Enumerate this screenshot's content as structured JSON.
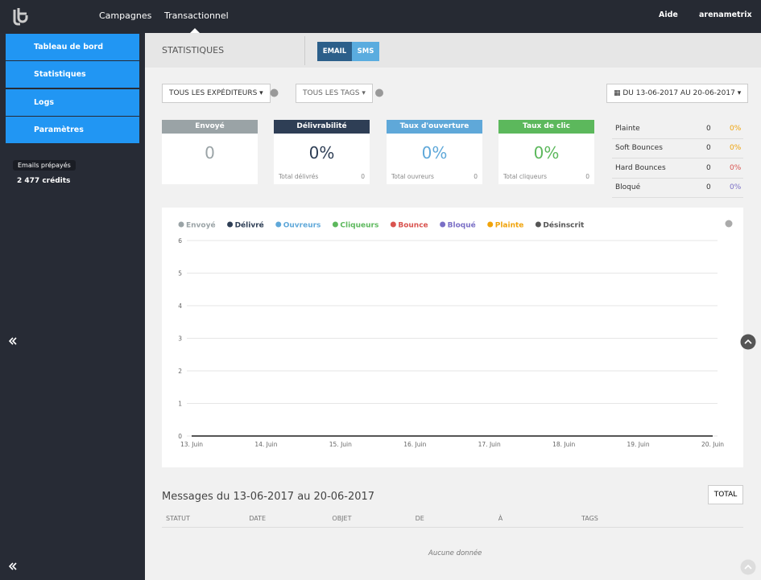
{
  "nav": {
    "items": [
      "Campagnes",
      "Transactionnel"
    ],
    "help": "Aide",
    "user": "arenametrix"
  },
  "sidebar": {
    "menu": [
      "Tableau de bord",
      "Statistiques",
      "Logs",
      "Paramètres"
    ],
    "credits_label": "Emails prépayés",
    "credits": "2 477 crédits"
  },
  "header": {
    "title": "STATISTIQUES",
    "tabs": [
      "EMAIL",
      "SMS"
    ]
  },
  "filters": {
    "senders": "TOUS LES EXPÉDITEURS",
    "tags": "TOUS LES TAGS",
    "date_range": "DU 13-06-2017 AU 20-06-2017"
  },
  "cards": [
    {
      "title": "Envoyé",
      "value": "0"
    },
    {
      "title": "Délivrabilité",
      "value": "0%",
      "footer_label": "Total délivrés",
      "footer_value": 0
    },
    {
      "title": "Taux d'ouverture",
      "value": "0%",
      "footer_label": "Total ouvreurs",
      "footer_value": 0
    },
    {
      "title": "Taux de clic",
      "value": "0%",
      "footer_label": "Total cliqueurs",
      "footer_value": 0
    }
  ],
  "side_stats": [
    {
      "label": "Plainte",
      "count": 0,
      "rate": "0%"
    },
    {
      "label": "Soft Bounces",
      "count": 0,
      "rate": "0%"
    },
    {
      "label": "Hard Bounces",
      "count": 0,
      "rate": "0%"
    },
    {
      "label": "Bloqué",
      "count": 0,
      "rate": "0%"
    }
  ],
  "chart_data": {
    "type": "line",
    "categories": [
      "13. Juin",
      "14. Juin",
      "15. Juin",
      "16. Juin",
      "17. Juin",
      "18. Juin",
      "19. Juin",
      "20. Juin"
    ],
    "series": [
      {
        "name": "Envoyé",
        "color": "#9aa3a6",
        "values": [
          0,
          0,
          0,
          0,
          0,
          0,
          0,
          0
        ]
      },
      {
        "name": "Délivré",
        "color": "#2e3e55",
        "values": [
          0,
          0,
          0,
          0,
          0,
          0,
          0,
          0
        ]
      },
      {
        "name": "Ouvreurs",
        "color": "#5fa8d9",
        "values": [
          0,
          0,
          0,
          0,
          0,
          0,
          0,
          0
        ]
      },
      {
        "name": "Cliqueurs",
        "color": "#5cb85c",
        "values": [
          0,
          0,
          0,
          0,
          0,
          0,
          0,
          0
        ]
      },
      {
        "name": "Bounce",
        "color": "#d9534f",
        "values": [
          0,
          0,
          0,
          0,
          0,
          0,
          0,
          0
        ]
      },
      {
        "name": "Bloqué",
        "color": "#7a6fc6",
        "values": [
          0,
          0,
          0,
          0,
          0,
          0,
          0,
          0
        ]
      },
      {
        "name": "Plainte",
        "color": "#f0a30a",
        "values": [
          0,
          0,
          0,
          0,
          0,
          0,
          0,
          0
        ]
      },
      {
        "name": "Désinscrit",
        "color": "#555555",
        "values": [
          0,
          0,
          0,
          0,
          0,
          0,
          0,
          0
        ]
      }
    ],
    "ylim": [
      0,
      6
    ],
    "yticks": [
      0,
      1,
      2,
      3,
      4,
      5,
      6
    ],
    "grid": true,
    "legend": "top"
  },
  "messages": {
    "title": "Messages du 13-06-2017 au 20-06-2017",
    "total_button": "TOTAL",
    "columns": [
      "STATUT",
      "DATE",
      "OBJET",
      "DE",
      "À",
      "TAGS"
    ],
    "empty": "Aucune donnée"
  }
}
